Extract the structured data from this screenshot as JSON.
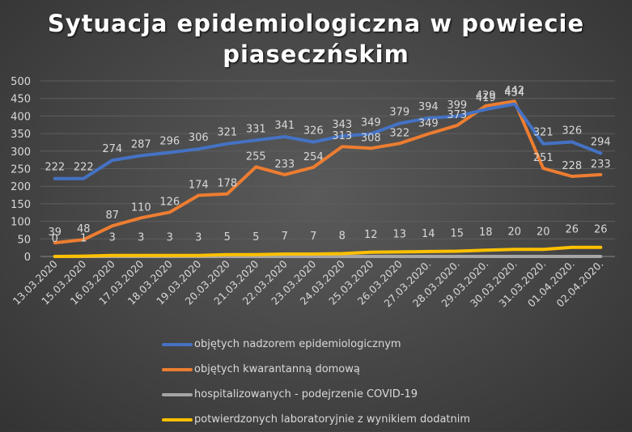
{
  "chart_data": {
    "type": "line",
    "title_lines": [
      "Sytuacja epidemiologiczna w powiecie",
      "piaseczńskim"
    ],
    "categories": [
      "13.03.2020",
      "15.03.2020",
      "16.03.2020",
      "17.03.2020",
      "18.03.2020",
      "19.03.2020",
      "20.03.2020",
      "21.03.2020",
      "22.03.2020",
      "23.03.2020",
      "24.03.2020",
      "25.03.2020",
      "26.03.2020",
      "27.03.2020.",
      "28.03.2020.",
      "29.03.2020.",
      "30.03.2020.",
      "31.03.2020.",
      "01.04.2020.",
      "02.04.2020."
    ],
    "y_ticks": [
      "0",
      "50",
      "100",
      "150",
      "200",
      "250",
      "300",
      "350",
      "400",
      "450",
      "500"
    ],
    "ylim": [
      0,
      500
    ],
    "grid": true,
    "legend_position": "bottom",
    "series": [
      {
        "name": "objętych nadzorem epidemiologicznym",
        "color": "#4472c4",
        "values": [
          222,
          222,
          274,
          287,
          296,
          306,
          321,
          331,
          341,
          326,
          343,
          349,
          379,
          394,
          399,
          419,
          434,
          321,
          326,
          294
        ],
        "labels": [
          "222",
          "222",
          "274",
          "287",
          "296",
          "306",
          "321",
          "331",
          "341",
          "326",
          "343",
          "349",
          "379",
          "394",
          "399",
          "419",
          "434",
          "321",
          "326",
          "294"
        ]
      },
      {
        "name": "objętych kwarantanną domową",
        "color": "#ed7d31",
        "values": [
          39,
          48,
          87,
          110,
          126,
          174,
          178,
          255,
          233,
          254,
          313,
          308,
          322,
          349,
          373,
          429,
          442,
          251,
          228,
          233
        ],
        "labels": [
          "39",
          "48",
          "87",
          "110",
          "126",
          "174",
          "178",
          "255",
          "233",
          "254",
          "313",
          "308",
          "322",
          "349",
          "373",
          "429",
          "442",
          "251",
          "228",
          "233"
        ]
      },
      {
        "name": "hospitalizowanych - podejrzenie COVID-19",
        "color": "#a5a5a5",
        "values": [
          0,
          0,
          0,
          0,
          0,
          0,
          0,
          0,
          0,
          0,
          0,
          0,
          0,
          0,
          0,
          0,
          0,
          0,
          0,
          0
        ],
        "labels": []
      },
      {
        "name": "potwierdzonych laboratoryjnie z wynikiem dodatnim",
        "color": "#ffc000",
        "values": [
          0,
          1,
          3,
          3,
          3,
          3,
          5,
          5,
          7,
          7,
          8,
          12,
          13,
          14,
          15,
          18,
          20,
          20,
          26,
          26
        ],
        "labels": [
          "0",
          "1",
          "3",
          "3",
          "3",
          "3",
          "5",
          "5",
          "7",
          "7",
          "8",
          "12",
          "13",
          "14",
          "15",
          "18",
          "20",
          "20",
          "26",
          "26"
        ]
      }
    ]
  }
}
